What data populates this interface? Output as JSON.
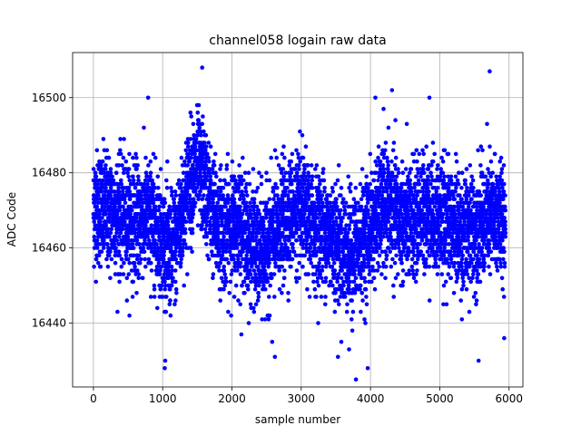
{
  "chart_data": {
    "type": "scatter",
    "title": "channel058 logain raw data",
    "xlabel": "sample number",
    "ylabel": "ADC Code",
    "xlim": [
      -300,
      6200
    ],
    "ylim": [
      16423,
      16512
    ],
    "xticks": [
      0,
      1000,
      2000,
      3000,
      4000,
      5000,
      6000
    ],
    "yticks": [
      16440,
      16460,
      16480,
      16500
    ],
    "grid": true,
    "marker": "circle",
    "series": [
      {
        "color": "#0000ff",
        "profile_note": "",
        "x": [
          0,
          150,
          300,
          450,
          600,
          750,
          900,
          1000,
          1100,
          1200,
          1300,
          1400,
          1500,
          1600,
          1700,
          1800,
          1900,
          2000,
          2100,
          2200,
          2300,
          2400,
          2500,
          2600,
          2700,
          2800,
          2900,
          3000,
          3100,
          3200,
          3300,
          3400,
          3500,
          3600,
          3700,
          3800,
          3900,
          4000,
          4100,
          4200,
          4300,
          4400,
          4500,
          4600,
          4700,
          4800,
          4900,
          5000,
          5100,
          5200,
          5300,
          5400,
          5500,
          5600,
          5700,
          5800,
          5900
        ],
        "y_center": [
          16471,
          16470,
          16469,
          16468,
          16467,
          16468,
          16466,
          16462,
          16458,
          16462,
          16471,
          16478,
          16481,
          16478,
          16470,
          16466,
          16465,
          16466,
          16467,
          16463,
          16461,
          16459,
          16460,
          16463,
          16466,
          16468,
          16470,
          16469,
          16467,
          16465,
          16465,
          16464,
          16462,
          16460,
          16458,
          16460,
          16462,
          16465,
          16468,
          16471,
          16470,
          16468,
          16466,
          16467,
          16469,
          16470,
          16469,
          16468,
          16467,
          16466,
          16464,
          16464,
          16465,
          16467,
          16468,
          16468,
          16468
        ]
      }
    ],
    "extremes": [
      {
        "x": 790,
        "y": 16500
      },
      {
        "x": 1030,
        "y": 16428
      },
      {
        "x": 1570,
        "y": 16508
      },
      {
        "x": 3790,
        "y": 16425
      },
      {
        "x": 3960,
        "y": 16428
      },
      {
        "x": 4070,
        "y": 16500
      },
      {
        "x": 4310,
        "y": 16502
      },
      {
        "x": 4850,
        "y": 16500
      },
      {
        "x": 5560,
        "y": 16430
      },
      {
        "x": 5720,
        "y": 16507
      },
      {
        "x": 5930,
        "y": 16436
      },
      {
        "x": 2620,
        "y": 16431
      },
      {
        "x": 2580,
        "y": 16435
      },
      {
        "x": 3690,
        "y": 16433
      },
      {
        "x": 3530,
        "y": 16431
      }
    ],
    "n_points": 6000
  }
}
